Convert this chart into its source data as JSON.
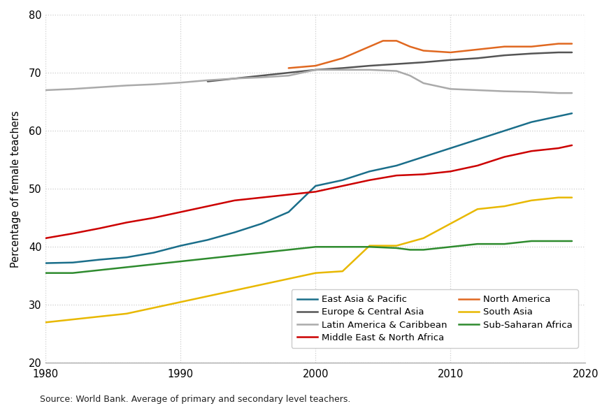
{
  "ylabel": "Percentage of female teachers",
  "source_text": "Source: World Bank. Average of primary and secondary level teachers.",
  "xlim": [
    1980,
    2020
  ],
  "ylim": [
    20,
    80
  ],
  "yticks": [
    20,
    30,
    40,
    50,
    60,
    70,
    80
  ],
  "xticks": [
    1980,
    1990,
    2000,
    2010,
    2020
  ],
  "series": [
    {
      "name": "East Asia & Pacific",
      "color": "#1a6e8a",
      "linewidth": 1.8,
      "years": [
        1980,
        1982,
        1984,
        1986,
        1988,
        1990,
        1992,
        1994,
        1996,
        1998,
        2000,
        2002,
        2004,
        2006,
        2008,
        2010,
        2012,
        2014,
        2016,
        2018,
        2019
      ],
      "values": [
        37.2,
        37.3,
        37.8,
        38.2,
        39.0,
        40.2,
        41.2,
        42.5,
        44.0,
        46.0,
        50.5,
        51.5,
        53.0,
        54.0,
        55.5,
        57.0,
        58.5,
        60.0,
        61.5,
        62.5,
        63.0
      ]
    },
    {
      "name": "Europe & Central Asia",
      "color": "#555555",
      "linewidth": 1.8,
      "years": [
        1992,
        1994,
        1996,
        1998,
        2000,
        2002,
        2004,
        2006,
        2008,
        2010,
        2012,
        2014,
        2016,
        2018,
        2019
      ],
      "values": [
        68.5,
        69.0,
        69.5,
        70.0,
        70.5,
        70.8,
        71.2,
        71.5,
        71.8,
        72.2,
        72.5,
        73.0,
        73.3,
        73.5,
        73.5
      ]
    },
    {
      "name": "Latin America & Caribbean",
      "color": "#aaaaaa",
      "linewidth": 1.8,
      "years": [
        1980,
        1982,
        1984,
        1986,
        1988,
        1990,
        1992,
        1994,
        1996,
        1998,
        2000,
        2002,
        2004,
        2006,
        2007,
        2008,
        2010,
        2012,
        2014,
        2016,
        2018,
        2019
      ],
      "values": [
        67.0,
        67.2,
        67.5,
        67.8,
        68.0,
        68.3,
        68.7,
        69.0,
        69.2,
        69.5,
        70.5,
        70.5,
        70.5,
        70.3,
        69.5,
        68.2,
        67.2,
        67.0,
        66.8,
        66.7,
        66.5,
        66.5
      ]
    },
    {
      "name": "Middle East & North Africa",
      "color": "#cc0000",
      "linewidth": 1.8,
      "years": [
        1980,
        1982,
        1984,
        1986,
        1988,
        1990,
        1992,
        1994,
        1996,
        1998,
        2000,
        2002,
        2004,
        2006,
        2008,
        2010,
        2012,
        2014,
        2016,
        2018,
        2019
      ],
      "values": [
        41.5,
        42.3,
        43.2,
        44.2,
        45.0,
        46.0,
        47.0,
        48.0,
        48.5,
        49.0,
        49.5,
        50.5,
        51.5,
        52.3,
        52.5,
        53.0,
        54.0,
        55.5,
        56.5,
        57.0,
        57.5
      ]
    },
    {
      "name": "North America",
      "color": "#e06820",
      "linewidth": 1.8,
      "years": [
        1998,
        2000,
        2002,
        2004,
        2005,
        2006,
        2007,
        2008,
        2010,
        2012,
        2014,
        2016,
        2018,
        2019
      ],
      "values": [
        70.8,
        71.2,
        72.5,
        74.5,
        75.5,
        75.5,
        74.5,
        73.8,
        73.5,
        74.0,
        74.5,
        74.5,
        75.0,
        75.0
      ]
    },
    {
      "name": "South Asia",
      "color": "#e8b800",
      "linewidth": 1.8,
      "years": [
        1980,
        1982,
        1984,
        1986,
        1988,
        1990,
        1992,
        1994,
        1996,
        1998,
        2000,
        2002,
        2003,
        2004,
        2006,
        2008,
        2010,
        2012,
        2014,
        2016,
        2018,
        2019
      ],
      "values": [
        27.0,
        27.5,
        28.0,
        28.5,
        29.5,
        30.5,
        31.5,
        32.5,
        33.5,
        34.5,
        35.5,
        35.8,
        38.0,
        40.2,
        40.2,
        41.5,
        44.0,
        46.5,
        47.0,
        48.0,
        48.5,
        48.5
      ]
    },
    {
      "name": "Sub-Saharan Africa",
      "color": "#2e8b2e",
      "linewidth": 1.8,
      "years": [
        1980,
        1982,
        1984,
        1986,
        1988,
        1990,
        1992,
        1994,
        1996,
        1998,
        2000,
        2002,
        2004,
        2006,
        2007,
        2008,
        2010,
        2012,
        2014,
        2016,
        2018,
        2019
      ],
      "values": [
        35.5,
        35.5,
        36.0,
        36.5,
        37.0,
        37.5,
        38.0,
        38.5,
        39.0,
        39.5,
        40.0,
        40.0,
        40.0,
        39.8,
        39.5,
        39.5,
        40.0,
        40.5,
        40.5,
        41.0,
        41.0,
        41.0
      ]
    }
  ],
  "legend_order": [
    "East Asia & Pacific",
    "Europe & Central Asia",
    "Latin America & Caribbean",
    "Middle East & North Africa",
    "North America",
    "South Asia",
    "Sub-Saharan Africa"
  ],
  "background_color": "#ffffff",
  "grid_color": "#cccccc"
}
